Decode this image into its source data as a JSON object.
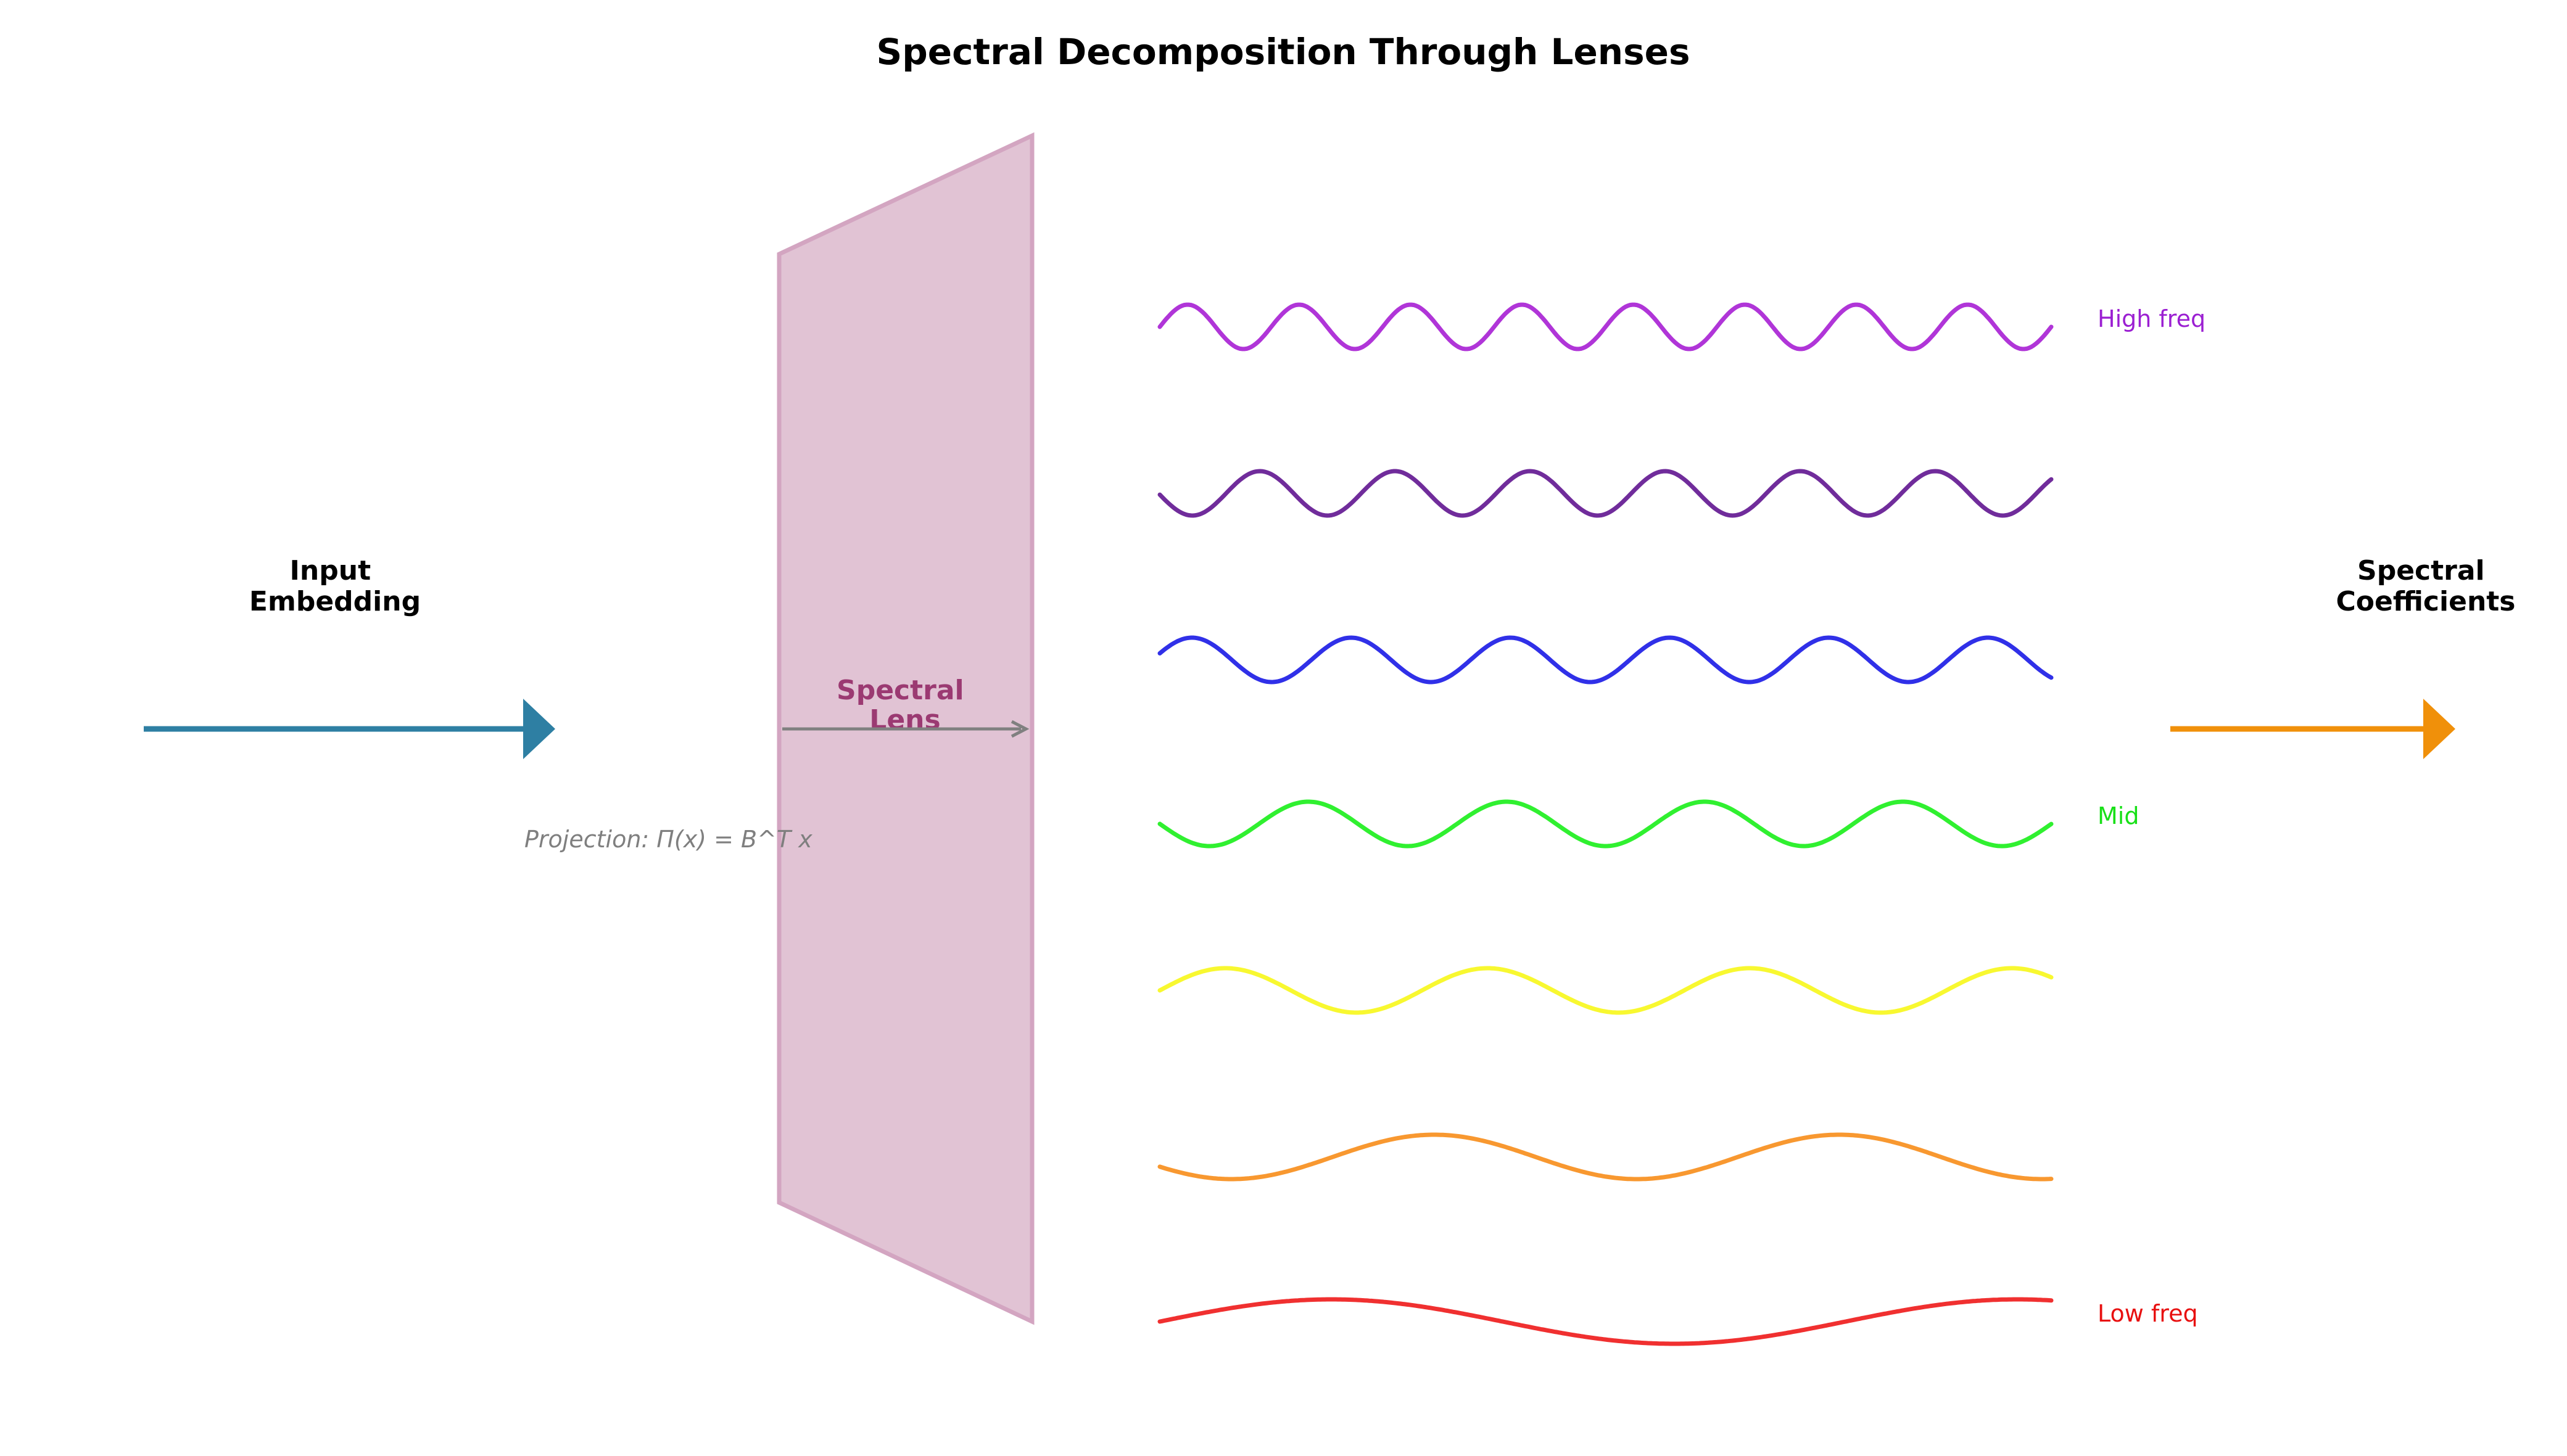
{
  "title": "Spectral Decomposition Through Lenses",
  "input_label": [
    "Input",
    "Embedding"
  ],
  "output_label": [
    "Spectral",
    "Coefficients"
  ],
  "lens_label": [
    "Spectral",
    "Lens"
  ],
  "projection_formula": "Projection: Π(x) = B^T x",
  "band_labels": {
    "high": "High freq",
    "mid": "Mid",
    "low": "Low freq"
  },
  "colors": {
    "input_arrow": "#2e7fa3",
    "output_arrow": "#f0900a",
    "lens_fill": "#e1c3d4",
    "lens_stroke": "#d3a5c1",
    "lens_text": "#9b3a72",
    "inner_arrow": "#808080",
    "waves": [
      "#b035d8",
      "#702c9b",
      "#3030e8",
      "#30f030",
      "#f8f830",
      "#f89830",
      "#f03030"
    ],
    "label_high": "#9b1fd2",
    "label_mid": "#18e018",
    "label_low": "#e81010"
  },
  "waves": [
    {
      "cycles": 8,
      "phase": 0
    },
    {
      "cycles": 6.6,
      "phase": 3.2
    },
    {
      "cycles": 5.6,
      "phase": 0.3
    },
    {
      "cycles": 4.5,
      "phase": 3.14
    },
    {
      "cycles": 3.4,
      "phase": 0
    },
    {
      "cycles": 2.2,
      "phase": 3.6
    },
    {
      "cycles": 1.3,
      "phase": 0
    }
  ]
}
